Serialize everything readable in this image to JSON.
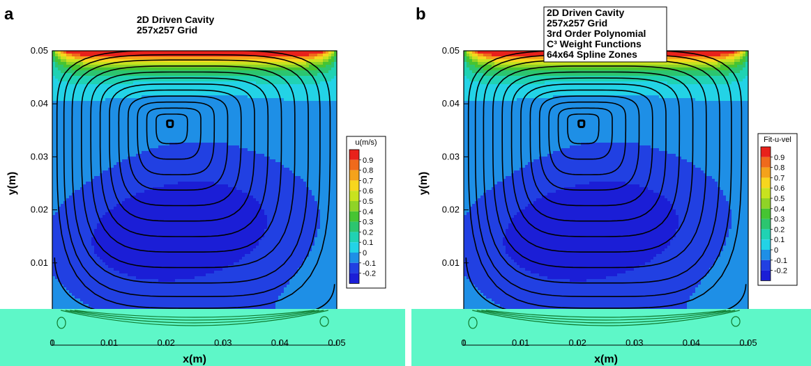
{
  "chart_data": [
    {
      "type": "heatmap",
      "panel_label": "a",
      "title_lines": [
        "2D Driven Cavity",
        "257x257 Grid"
      ],
      "title_boxed": false,
      "xlabel": "x(m)",
      "ylabel": "y(m)",
      "xlim": [
        0,
        0.05
      ],
      "ylim": [
        0,
        0.05
      ],
      "x_ticks": [
        "0",
        "0.01",
        "0.02",
        "0.03",
        "0.04",
        "0.05"
      ],
      "y_ticks": [
        "0",
        "0.01",
        "0.02",
        "0.03",
        "0.04",
        "0.05"
      ],
      "colorbar": {
        "title": "u(m/s)",
        "levels": [
          "0.9",
          "0.8",
          "0.7",
          "0.6",
          "0.5",
          "0.4",
          "0.3",
          "0.2",
          "0.1",
          "0",
          "-0.1",
          "-0.2"
        ],
        "colors": [
          "#e8211b",
          "#ef6a1c",
          "#f4a21b",
          "#f7d61e",
          "#c8e21f",
          "#8fd327",
          "#46c432",
          "#2cc56f",
          "#20d2b3",
          "#23d3e6",
          "#1e8fe6",
          "#2140e2",
          "#1b1ed6"
        ]
      },
      "u_min": -0.2,
      "u_max": 1.0,
      "vortex_center": [
        0.0205,
        0.0365
      ]
    },
    {
      "type": "heatmap",
      "panel_label": "b",
      "title_lines": [
        "2D Driven Cavity",
        "257x257 Grid",
        "3rd Order Polynomial",
        "C³ Weight Functions",
        "64x64 Spline Zones"
      ],
      "title_boxed": true,
      "xlabel": "x(m)",
      "ylabel": "y(m)",
      "xlim": [
        0,
        0.05
      ],
      "ylim": [
        0,
        0.05
      ],
      "x_ticks": [
        "0",
        "0.01",
        "0.02",
        "0.03",
        "0.04",
        "0.05"
      ],
      "y_ticks": [
        "0",
        "0.01",
        "0.02",
        "0.03",
        "0.04",
        "0.05"
      ],
      "colorbar": {
        "title": "Fit-u-vel",
        "levels": [
          "0.9",
          "0.8",
          "0.7",
          "0.6",
          "0.5",
          "0.4",
          "0.3",
          "0.2",
          "0.1",
          "0",
          "-0.1",
          "-0.2"
        ],
        "colors": [
          "#e8211b",
          "#ef6a1c",
          "#f4a21b",
          "#f7d61e",
          "#c8e21f",
          "#8fd327",
          "#46c432",
          "#2cc56f",
          "#20d2b3",
          "#23d3e6",
          "#1e8fe6",
          "#2140e2",
          "#1b1ed6"
        ]
      },
      "u_min": -0.2,
      "u_max": 1.0,
      "vortex_center": [
        0.0205,
        0.0365
      ]
    }
  ],
  "overlay_band_color": "#5ef7c8"
}
